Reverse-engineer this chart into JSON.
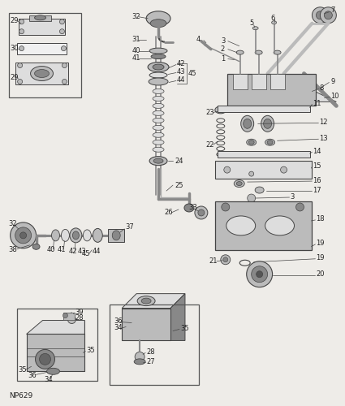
{
  "bg_color": "#eeece8",
  "line_color": "#444444",
  "text_color": "#222222",
  "border_color": "#555555",
  "np_label": "NP629",
  "fig_width": 4.25,
  "fig_height": 5.0,
  "dpi": 100
}
